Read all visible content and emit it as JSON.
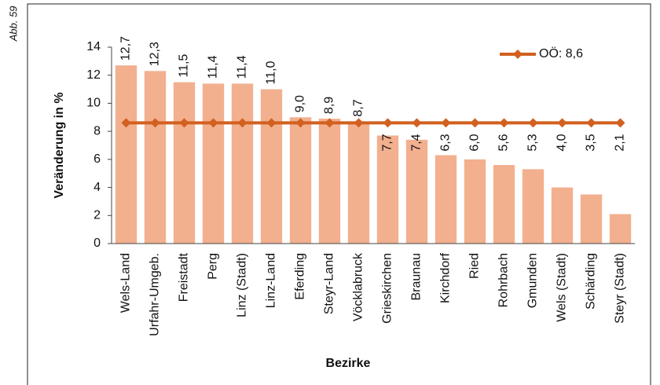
{
  "chart_data": {
    "type": "bar",
    "figure_label": "Abb. 59",
    "xlabel": "Bezirke",
    "ylabel": "Veränderung in %",
    "categories": [
      "Wels-Land",
      "Urfahr-Umgeb.",
      "Freistadt",
      "Perg",
      "Linz (Stadt)",
      "Linz-Land",
      "Eferding",
      "Steyr-Land",
      "Vöcklabruck",
      "Grieskirchen",
      "Braunau",
      "Kirchdorf",
      "Ried",
      "Rohrbach",
      "Gmunden",
      "Wels (Stadt)",
      "Schärding",
      "Steyr (Stadt)"
    ],
    "values": [
      12.7,
      12.3,
      11.5,
      11.4,
      11.4,
      11.0,
      9.0,
      8.9,
      8.7,
      7.7,
      7.4,
      6.3,
      6.0,
      5.6,
      5.3,
      4.0,
      3.5,
      2.1
    ],
    "value_labels": [
      "12,7",
      "12,3",
      "11,5",
      "11,4",
      "11,4",
      "11,0",
      "9,0",
      "8,9",
      "8,7",
      "7,7",
      "7,4",
      "6,3",
      "6,0",
      "5,6",
      "5,3",
      "4,0",
      "3,5",
      "2,1"
    ],
    "color": "#f2b08f",
    "line": {
      "name": "OÖ: 8,6",
      "color": "#d2601f",
      "values": [
        8.6,
        8.6,
        8.6,
        8.6,
        8.6,
        8.6,
        8.6,
        8.6,
        8.6,
        8.6,
        8.6,
        8.6,
        8.6,
        8.6,
        8.6,
        8.6,
        8.6,
        8.6
      ]
    },
    "legend": "upper right",
    "ylim": [
      0,
      14
    ],
    "yticks": [
      0,
      2,
      4,
      6,
      8,
      10,
      12,
      14
    ],
    "grid": false
  }
}
